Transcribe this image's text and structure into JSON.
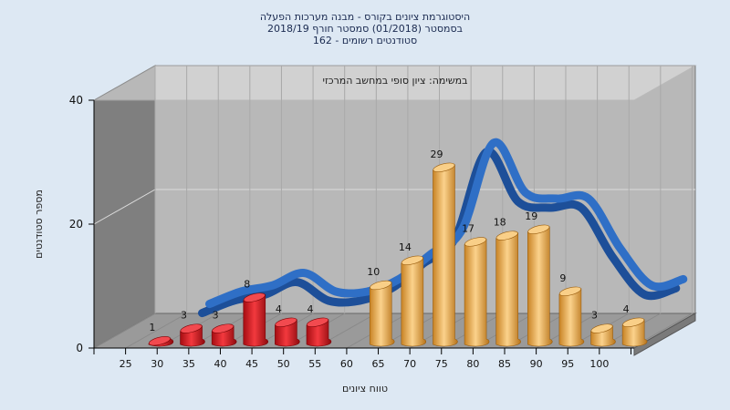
{
  "title_lines": [
    "היסטוגרמת ציונים בקורס - מבנה מערכות הפעלה",
    "בסמסטר  (01/2018)  סמסטר חורף 2018/19",
    "סטודנטים רשומים - 162"
  ],
  "chart_data": {
    "type": "bar",
    "subtitle": "במשימה: ציון סופי במחשב המרכזי",
    "xlabel": "טווח ציונים",
    "ylabel": "מספר סטודנטים",
    "x_ticks": [
      "25",
      "30",
      "35",
      "40",
      "45",
      "50",
      "55",
      "60",
      "65",
      "70",
      "75",
      "80",
      "85",
      "90",
      "95",
      "100"
    ],
    "y_ticks": [
      "0",
      "20",
      "40"
    ],
    "ylim": [
      0,
      40
    ],
    "bars": [
      {
        "x": 27.5,
        "value": 1,
        "color": "red"
      },
      {
        "x": 32.5,
        "value": 3,
        "color": "red"
      },
      {
        "x": 37.5,
        "value": 3,
        "color": "red"
      },
      {
        "x": 42.5,
        "value": 8,
        "color": "red"
      },
      {
        "x": 47.5,
        "value": 4,
        "color": "red"
      },
      {
        "x": 52.5,
        "value": 4,
        "color": "red"
      },
      {
        "x": 62.5,
        "value": 10,
        "color": "orange"
      },
      {
        "x": 67.5,
        "value": 14,
        "color": "orange"
      },
      {
        "x": 72.5,
        "value": 29,
        "color": "orange"
      },
      {
        "x": 77.5,
        "value": 17,
        "color": "orange"
      },
      {
        "x": 82.5,
        "value": 18,
        "color": "orange"
      },
      {
        "x": 87.5,
        "value": 19,
        "color": "orange"
      },
      {
        "x": 92.5,
        "value": 9,
        "color": "orange"
      },
      {
        "x": 97.5,
        "value": 3,
        "color": "orange"
      },
      {
        "x": 102.5,
        "value": 4,
        "color": "orange"
      }
    ],
    "trend_line": {
      "color": "#2f6fc6",
      "x": [
        32.5,
        37.5,
        42.5,
        47.5,
        52.5,
        57.5,
        62.5,
        67.5,
        72.5,
        77.5,
        82.5,
        87.5,
        92.5,
        97.5,
        102.5,
        107.5
      ],
      "y": [
        3,
        5,
        6,
        8,
        5,
        5,
        7,
        11,
        15,
        29,
        21,
        20,
        20,
        12,
        6,
        7
      ]
    },
    "colors": {
      "red_light": "#f2343a",
      "red_dark": "#9e0b10",
      "orange_light": "#f8c675",
      "orange_dark": "#c27c1f",
      "plot_back": "#b9b9b9",
      "plot_side": "#7e7e7e",
      "plot_floor": "#9b9b9b"
    }
  }
}
